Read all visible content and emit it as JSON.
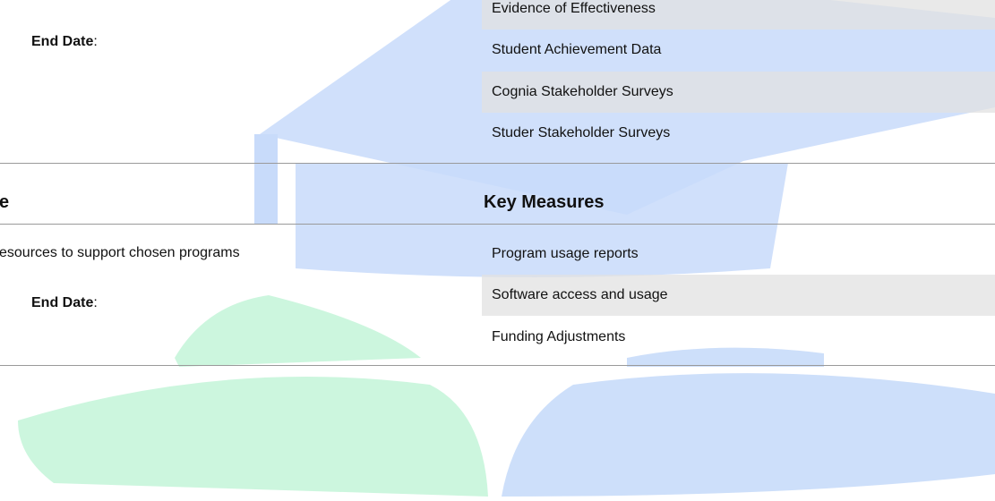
{
  "upper_section": {
    "end_date": {
      "label": "End Date",
      "separator": ":"
    },
    "measures": [
      "Evidence of Effectiveness",
      "Student Achievement Data",
      "Cognia Stakeholder Surveys",
      "Studer Stakeholder Surveys"
    ]
  },
  "lower_section": {
    "left_heading": "e",
    "right_heading": "Key Measures",
    "description": "esources to support chosen programs",
    "end_date": {
      "label": "End Date",
      "separator": ":"
    },
    "measures": [
      "Program usage reports",
      "Software access and usage",
      "Funding Adjustments"
    ]
  }
}
